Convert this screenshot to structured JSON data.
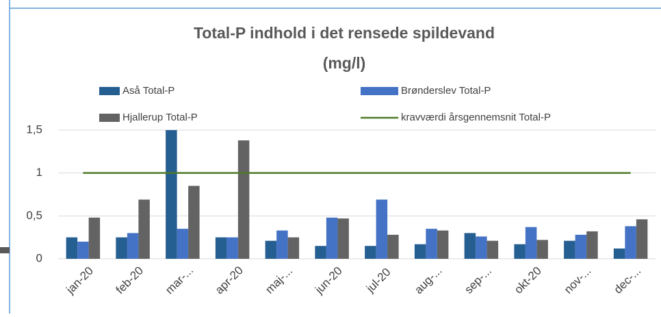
{
  "chart_data": {
    "type": "bar",
    "title": [
      "Total-P indhold i det rensede spildevand",
      "(mg/l)"
    ],
    "categories": [
      "jan-20",
      "feb-20",
      "mar-...",
      "apr-20",
      "maj-...",
      "jun-20",
      "jul-20",
      "aug-...",
      "sep-...",
      "okt-20",
      "nov-...",
      "dec-..."
    ],
    "series": [
      {
        "name": "Aså Total-P",
        "color": "#255e91",
        "values": [
          0.25,
          0.25,
          1.5,
          0.25,
          0.21,
          0.15,
          0.15,
          0.17,
          0.3,
          0.17,
          0.21,
          0.12
        ]
      },
      {
        "name": "Brønderslev Total-P",
        "color": "#4472c4",
        "values": [
          0.2,
          0.3,
          0.35,
          0.25,
          0.33,
          0.48,
          0.69,
          0.35,
          0.26,
          0.37,
          0.28,
          0.38
        ]
      },
      {
        "name": "Hjallerup Total-P",
        "color": "#636363",
        "values": [
          0.48,
          0.69,
          0.85,
          1.38,
          0.25,
          0.47,
          0.28,
          0.33,
          0.21,
          0.22,
          0.32,
          0.46
        ]
      },
      {
        "name": "kravværdi årsgennemsnit Total-P",
        "color": "#4e7a28",
        "type": "line",
        "values": [
          1,
          1,
          1,
          1,
          1,
          1,
          1,
          1,
          1,
          1,
          1,
          1
        ]
      }
    ],
    "ylim": [
      0,
      1.5
    ],
    "yticks": [
      0,
      {
        "value": 0.5,
        "label": "0,5"
      },
      1,
      {
        "value": 1.5,
        "label": "1,5"
      }
    ],
    "grid": true
  }
}
